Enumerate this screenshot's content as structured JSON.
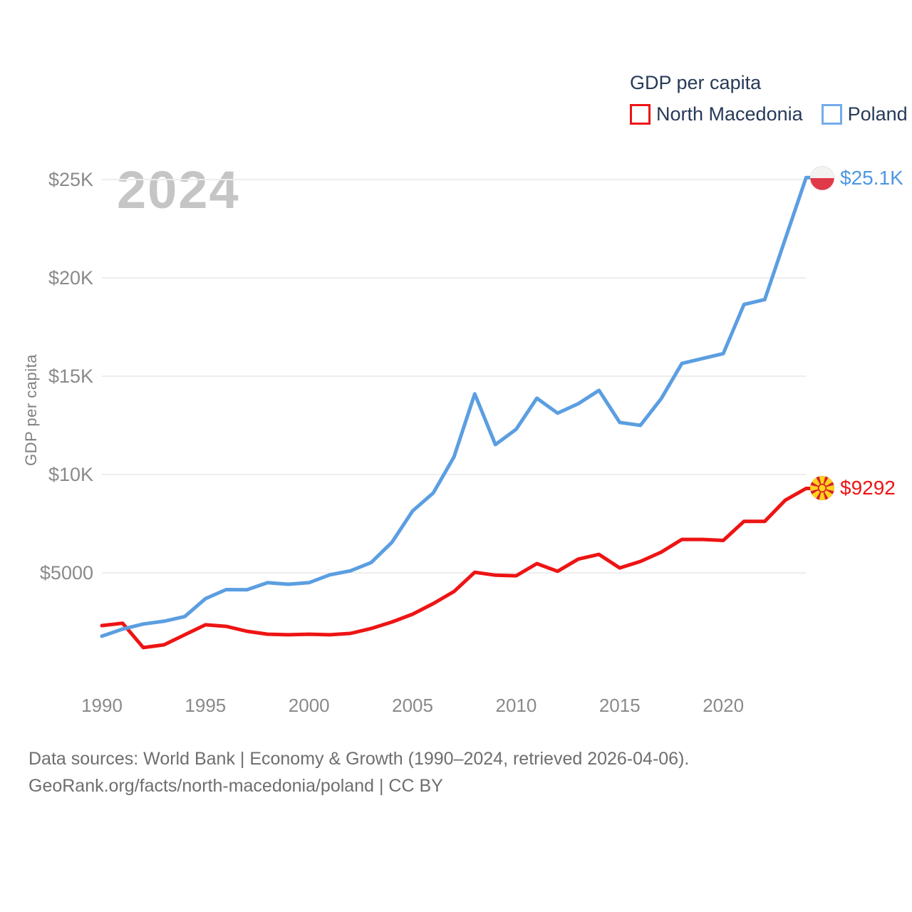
{
  "watermark_year": "2024",
  "y_axis_title": "GDP per capita",
  "legend": {
    "title": "GDP per capita",
    "items": [
      {
        "label": "North Macedonia",
        "color": "#ee1414"
      },
      {
        "label": "Poland",
        "color": "#74abe8"
      }
    ]
  },
  "footer": {
    "line1": "Data sources: World Bank | Economy & Growth (1990–2024, retrieved 2026-04-06).",
    "line2": "GeoRank.org/facts/north-macedonia/poland | CC BY"
  },
  "colors": {
    "north_macedonia_line": "#ee1414",
    "poland_line": "#5b9ee1",
    "poland_label": "#4f97e2",
    "axis_text": "#8a8a8a",
    "gridline": "#ededed",
    "legend_text": "#273a58",
    "watermark": "#c5c5c5",
    "footer_text": "#6e6e6e"
  },
  "chart_data": {
    "type": "line",
    "title": "GDP per capita",
    "xlabel": "",
    "ylabel": "GDP per capita",
    "grid": true,
    "legend_position": "top-right",
    "xlim": [
      1990,
      2024
    ],
    "ylim": [
      0,
      26500
    ],
    "x_ticks": [
      1990,
      1995,
      2000,
      2005,
      2010,
      2015,
      2020
    ],
    "y_ticks": [
      {
        "value": 5000,
        "label": "$5000"
      },
      {
        "value": 10000,
        "label": "$10K"
      },
      {
        "value": 15000,
        "label": "$15K"
      },
      {
        "value": 20000,
        "label": "$20K"
      },
      {
        "value": 25000,
        "label": "$25K"
      }
    ],
    "x": [
      1990,
      1991,
      1992,
      1993,
      1994,
      1995,
      1996,
      1997,
      1998,
      1999,
      2000,
      2001,
      2002,
      2003,
      2004,
      2005,
      2006,
      2007,
      2008,
      2009,
      2010,
      2011,
      2012,
      2013,
      2014,
      2015,
      2016,
      2017,
      2018,
      2019,
      2020,
      2021,
      2022,
      2023,
      2024
    ],
    "series": [
      {
        "name": "North Macedonia",
        "color": "#ee1414",
        "end_label": "$9292",
        "end_marker": "north-macedonia-flag-icon",
        "values": [
          2320,
          2440,
          1200,
          1340,
          1850,
          2360,
          2280,
          2030,
          1880,
          1850,
          1880,
          1850,
          1920,
          2170,
          2500,
          2900,
          3440,
          4050,
          5030,
          4880,
          4850,
          5470,
          5080,
          5700,
          5940,
          5250,
          5580,
          6050,
          6700,
          6700,
          6650,
          7620,
          7620,
          8700,
          9292
        ]
      },
      {
        "name": "Poland",
        "color": "#5b9ee1",
        "end_label": "$25.1K",
        "end_marker": "poland-flag-icon",
        "values": [
          1780,
          2140,
          2400,
          2540,
          2780,
          3690,
          4150,
          4140,
          4500,
          4420,
          4500,
          4900,
          5100,
          5520,
          6550,
          8150,
          9060,
          10900,
          14100,
          11520,
          12300,
          13880,
          13120,
          13600,
          14280,
          12650,
          12500,
          13850,
          15650,
          15900,
          16150,
          18650,
          18900,
          22000,
          25100
        ]
      }
    ]
  }
}
